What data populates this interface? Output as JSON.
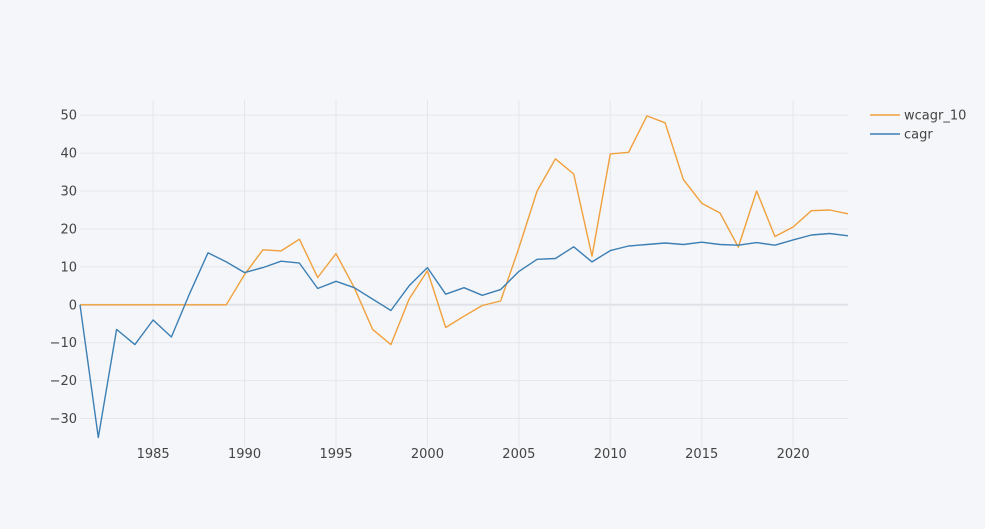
{
  "chart_data": {
    "type": "line",
    "title": "",
    "xlabel": "",
    "ylabel": "",
    "xlim": [
      1981,
      2023
    ],
    "ylim": [
      -37.5,
      54
    ],
    "xticks": [
      1985,
      1990,
      1995,
      2000,
      2005,
      2010,
      2015,
      2020
    ],
    "yticks": [
      -30,
      -20,
      -10,
      0,
      10,
      20,
      30,
      40,
      50
    ],
    "ytick_labels": [
      "−30",
      "−20",
      "−10",
      "0",
      "10",
      "20",
      "30",
      "40",
      "50"
    ],
    "grid": true,
    "legend": "top-right",
    "x": [
      1981,
      1982,
      1983,
      1984,
      1985,
      1986,
      1987,
      1988,
      1989,
      1990,
      1991,
      1992,
      1993,
      1994,
      1995,
      1996,
      1997,
      1998,
      1999,
      2000,
      2001,
      2002,
      2003,
      2004,
      2005,
      2006,
      2007,
      2008,
      2009,
      2010,
      2011,
      2012,
      2013,
      2014,
      2015,
      2016,
      2017,
      2018,
      2019,
      2020,
      2021,
      2022,
      2023
    ],
    "series": [
      {
        "name": "wcagr_10",
        "color": "#f0a03c",
        "values": [
          0,
          0,
          0,
          0,
          0,
          0,
          0,
          0,
          0,
          8,
          14.5,
          14.2,
          17.3,
          7.2,
          13.5,
          4.5,
          -6.5,
          -10.5,
          1.5,
          9,
          -6,
          -3,
          -0.2,
          1,
          15,
          30,
          38.5,
          34.5,
          12.8,
          39.8,
          40.2,
          49.8,
          48,
          33,
          26.8,
          24.2,
          15.2,
          30,
          18,
          20.5,
          24.8,
          25,
          24
        ]
      },
      {
        "name": "cagr",
        "color": "#3c7fb4",
        "values": [
          0,
          -35,
          -6.5,
          -10.5,
          -4,
          -8.5,
          3,
          13.7,
          11.3,
          8.5,
          9.8,
          11.5,
          11,
          4.3,
          6.2,
          4.5,
          1.5,
          -1.5,
          5,
          9.8,
          2.8,
          4.5,
          2.5,
          4,
          8.8,
          12,
          12.2,
          15.3,
          11.3,
          14.3,
          15.5,
          15.9,
          16.3,
          15.9,
          16.5,
          15.9,
          15.7,
          16.4,
          15.7,
          17.1,
          18.4,
          18.8,
          18.2
        ]
      }
    ]
  }
}
